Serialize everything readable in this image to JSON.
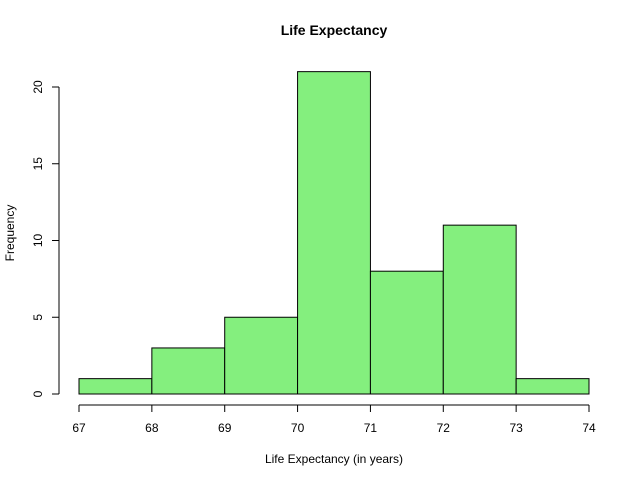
{
  "chart_data": {
    "type": "bar",
    "subtype": "histogram",
    "title": "Life Expectancy",
    "xlabel": "Life Expectancy (in years)",
    "ylabel": "Frequency",
    "bins": [
      {
        "from": 67,
        "to": 68,
        "count": 1
      },
      {
        "from": 68,
        "to": 69,
        "count": 3
      },
      {
        "from": 69,
        "to": 70,
        "count": 5
      },
      {
        "from": 70,
        "to": 71,
        "count": 21
      },
      {
        "from": 71,
        "to": 72,
        "count": 8
      },
      {
        "from": 72,
        "to": 73,
        "count": 11
      },
      {
        "from": 73,
        "to": 74,
        "count": 1
      }
    ],
    "xlim": [
      67,
      74
    ],
    "ylim": [
      0,
      21
    ],
    "x_ticks": [
      67,
      68,
      69,
      70,
      71,
      72,
      73,
      74
    ],
    "y_ticks": [
      0,
      5,
      10,
      15,
      20
    ],
    "bar_color": "#84ef7e",
    "edge_color": "#000000",
    "grid": false,
    "legend": false
  }
}
